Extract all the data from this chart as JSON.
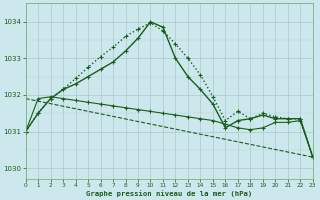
{
  "xlabel": "Graphe pression niveau de la mer (hPa)",
  "ylim": [
    1029.7,
    1034.5
  ],
  "xlim": [
    0,
    23
  ],
  "yticks": [
    1030,
    1031,
    1032,
    1033,
    1034
  ],
  "xticks": [
    0,
    1,
    2,
    3,
    4,
    5,
    6,
    7,
    8,
    9,
    10,
    11,
    12,
    13,
    14,
    15,
    16,
    17,
    18,
    19,
    20,
    21,
    22,
    23
  ],
  "background_color": "#cce8ed",
  "grid_color_major": "#b0c8cc",
  "grid_color_minor": "#c8dde0",
  "line_color": "#1a5c1a",
  "series": [
    {
      "name": "line_dotted",
      "x": [
        0,
        1,
        2,
        3,
        4,
        5,
        6,
        7,
        8,
        9,
        10,
        11,
        12,
        13,
        14,
        15,
        16,
        17,
        18,
        19,
        20,
        21,
        22,
        23
      ],
      "y": [
        1031.0,
        1031.5,
        1031.9,
        1032.15,
        1032.45,
        1032.75,
        1033.05,
        1033.3,
        1033.6,
        1033.8,
        1033.97,
        1033.75,
        1033.4,
        1033.0,
        1032.55,
        1031.95,
        1031.3,
        1031.55,
        1031.35,
        1031.5,
        1031.4,
        1031.35,
        1031.35,
        1030.3
      ],
      "linestyle": ":",
      "linewidth": 1.0
    },
    {
      "name": "line_solid_high",
      "x": [
        0,
        1,
        2,
        3,
        4,
        5,
        6,
        7,
        8,
        9,
        10,
        11,
        12,
        13,
        14,
        15,
        16,
        17,
        18,
        19,
        20,
        21,
        22,
        23
      ],
      "y": [
        1031.0,
        1031.5,
        1031.9,
        1032.15,
        1032.3,
        1032.5,
        1032.7,
        1032.9,
        1033.2,
        1033.55,
        1034.0,
        1033.85,
        1033.0,
        1032.5,
        1032.15,
        1031.75,
        1031.1,
        1031.3,
        1031.35,
        1031.45,
        1031.35,
        1031.35,
        1031.35,
        1030.3
      ],
      "linestyle": "-",
      "linewidth": 1.0
    },
    {
      "name": "line_solid_flat",
      "x": [
        0,
        1,
        2,
        3,
        4,
        5,
        6,
        7,
        8,
        9,
        10,
        11,
        12,
        13,
        14,
        15,
        16,
        17,
        18,
        19,
        20,
        21,
        22,
        23
      ],
      "y": [
        1031.0,
        1031.9,
        1031.95,
        1031.9,
        1031.85,
        1031.8,
        1031.75,
        1031.7,
        1031.65,
        1031.6,
        1031.55,
        1031.5,
        1031.45,
        1031.4,
        1031.35,
        1031.3,
        1031.2,
        1031.1,
        1031.05,
        1031.1,
        1031.25,
        1031.25,
        1031.3,
        1030.3
      ],
      "linestyle": "-",
      "linewidth": 0.8
    },
    {
      "name": "line_dashed_diagonal",
      "x": [
        0,
        23
      ],
      "y": [
        1031.9,
        1030.3
      ],
      "linestyle": "--",
      "linewidth": 0.8
    }
  ]
}
